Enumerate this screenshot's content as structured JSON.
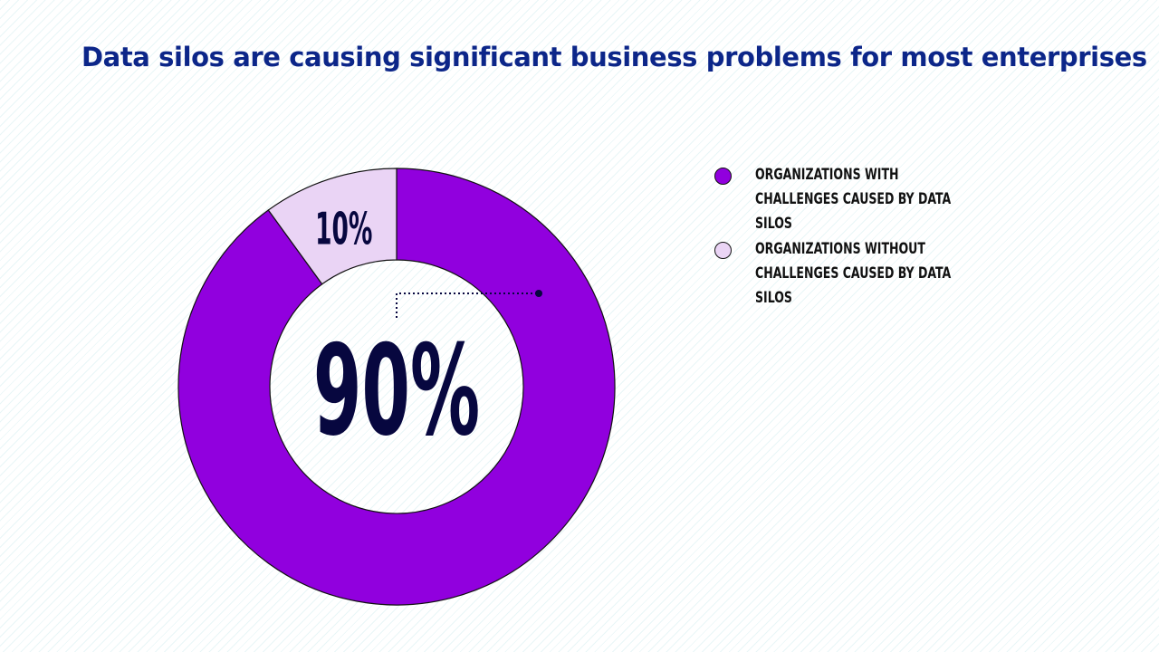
{
  "colors": {
    "title": "#0c2689",
    "primary_slice": "#9100de",
    "secondary_slice": "#ead4f5",
    "stroke": "#111111",
    "center_label": "#07073f",
    "slice_label": "#07073f"
  },
  "chart_data": {
    "type": "pie",
    "variant": "donut",
    "title": "Data silos are causing significant business problems for most enterprises",
    "legend_position": "right",
    "slices": [
      {
        "label": "ORGANIZATIONS WITH CHALLENGES CAUSED BY DATA SILOS",
        "value": 90,
        "display": "90%",
        "color": "#9100de"
      },
      {
        "label": "ORGANIZATIONS WITHOUT CHALLENGES CAUSED BY DATA SILOS",
        "value": 10,
        "display": "10%",
        "color": "#ead4f5"
      }
    ]
  }
}
